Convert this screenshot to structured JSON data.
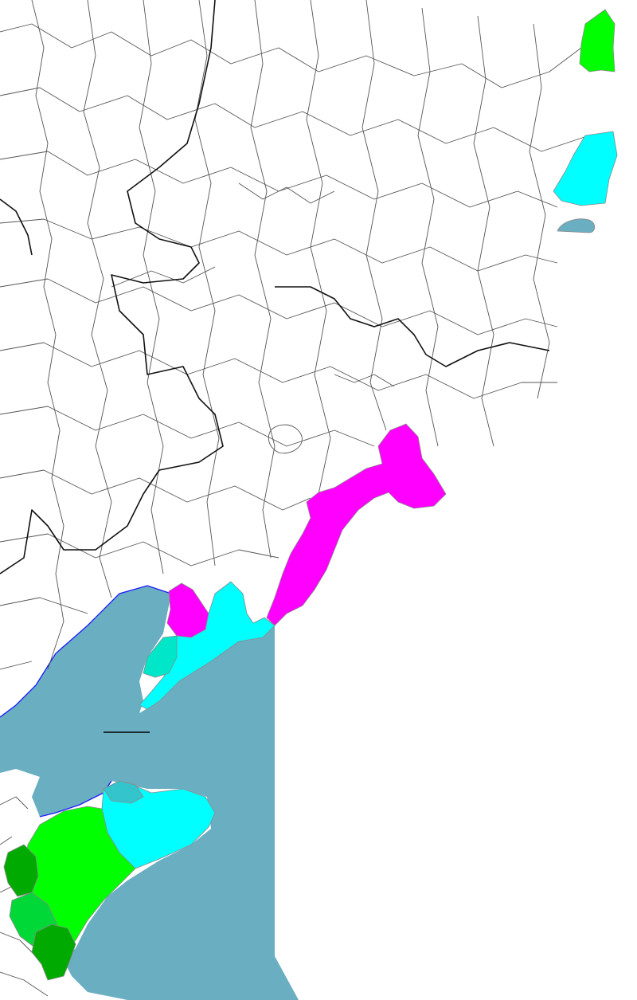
{
  "map": {
    "colors": {
      "land": "#ffffff",
      "sea": "#6aaec2",
      "boundary": "#555555",
      "provincial_boundary": "#111111",
      "coastline": "#1a1aff",
      "magenta": "#ff00ff",
      "cyan": "#00ffff",
      "turquoise": "#00e6c8",
      "teal": "#33c4cc",
      "green": "#00ff00",
      "medium_green": "#00d838",
      "dark_green": "#00aa00",
      "lake": "#6aaec2"
    },
    "regions": [
      {
        "name": "northeast-green",
        "color": "green"
      },
      {
        "name": "northeast-cyan",
        "color": "cyan"
      },
      {
        "name": "northeast-lake",
        "color": "lake"
      },
      {
        "name": "liaodong-east-magenta",
        "color": "magenta"
      },
      {
        "name": "liaodong-west-magenta",
        "color": "magenta"
      },
      {
        "name": "liaodong-cyan",
        "color": "cyan"
      },
      {
        "name": "liaodong-turquoise",
        "color": "turquoise"
      },
      {
        "name": "shandong-cyan",
        "color": "cyan"
      },
      {
        "name": "shandong-teal",
        "color": "teal"
      },
      {
        "name": "shandong-green",
        "color": "green"
      },
      {
        "name": "shandong-medium-green",
        "color": "medium_green"
      },
      {
        "name": "shandong-dark-green",
        "color": "dark_green"
      }
    ]
  }
}
